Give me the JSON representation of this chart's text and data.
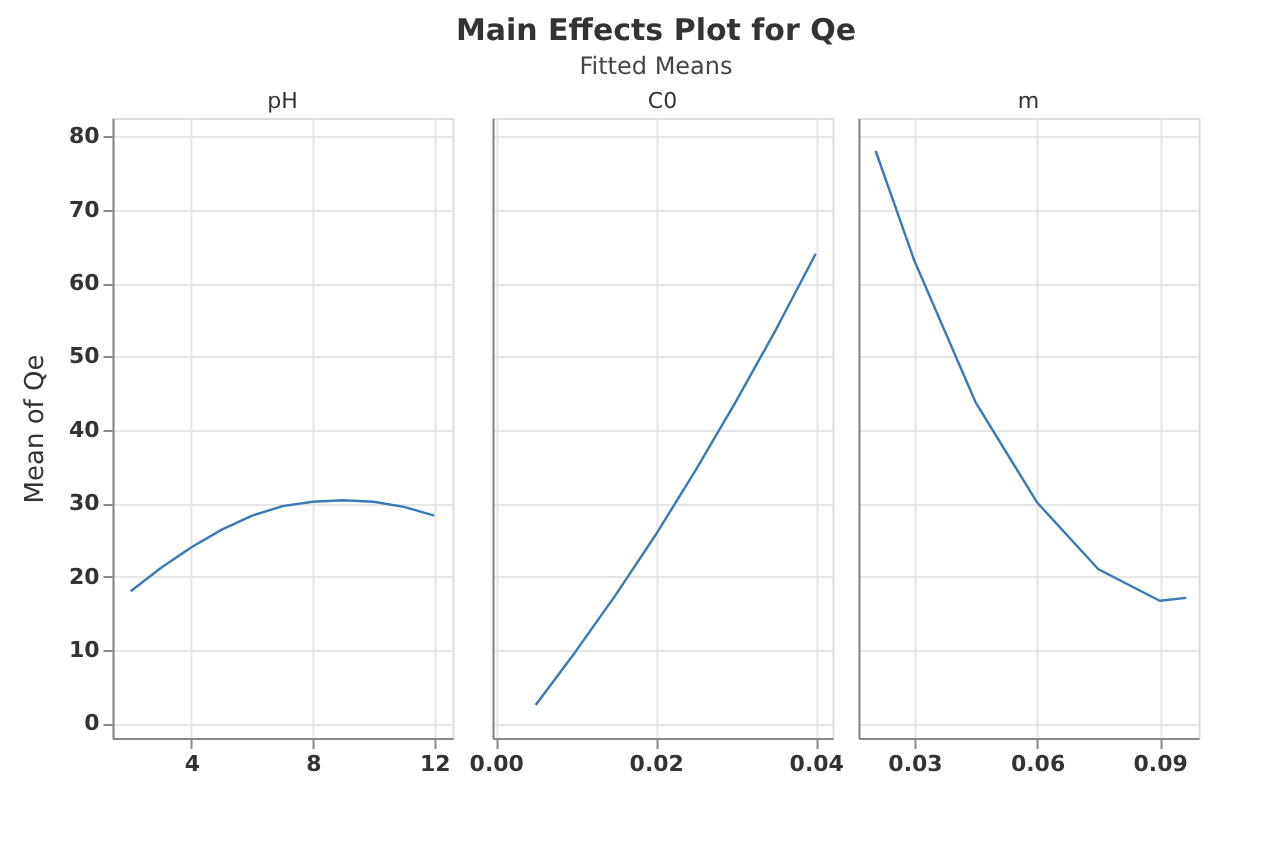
{
  "chart_data": [
    {
      "type": "other",
      "title": "Main Effects Plot for Qe",
      "subtitle": "Fitted Means"
    },
    {
      "type": "line",
      "ylabel": "Mean of Qe",
      "xlabel": "pH",
      "grid": true,
      "x": [
        2,
        3,
        4,
        5,
        6,
        7,
        8,
        9,
        10,
        11,
        12
      ],
      "values": [
        18,
        21.2,
        24,
        26.4,
        28.3,
        29.6,
        30.2,
        30.4,
        30.2,
        29.5,
        28.3
      ],
      "color": "#3a78b8",
      "xlim": [
        1.4,
        12.6
      ],
      "xticks": [
        4,
        8,
        12
      ],
      "ylim": [
        -2,
        82.5
      ],
      "yticks": [
        0,
        10,
        20,
        30,
        40,
        50,
        60,
        70,
        80
      ]
    },
    {
      "type": "line",
      "xlabel": "C0",
      "grid": true,
      "tick_labels": "x",
      "x": [
        0.005,
        0.01,
        0.015,
        0.02,
        0.025,
        0.03,
        0.035,
        0.04
      ],
      "values": [
        2.5,
        9.8,
        17.5,
        25.7,
        34.5,
        43.8,
        53.6,
        64
      ],
      "color": "#3a78b8",
      "xlim": [
        -0.0004,
        0.0421
      ],
      "xticks": [
        {
          "value": 0,
          "label": "0.00"
        },
        0.02,
        0.04
      ],
      "ylim": [
        -2,
        82.5
      ],
      "yticks": [
        0,
        10,
        20,
        30,
        40,
        50,
        60,
        70,
        80
      ]
    },
    {
      "type": "line",
      "xlabel": "m",
      "grid": true,
      "tick_labels": "x",
      "x": [
        0.0205,
        0.03,
        0.045,
        0.06,
        0.075,
        0.09,
        0.0965
      ],
      "values": [
        78,
        63,
        43.7,
        30.1,
        21,
        16.7,
        17.1
      ],
      "color": "#3a78b8",
      "xlim": [
        0.0163,
        0.0995
      ],
      "xticks": [
        0.03,
        0.06,
        0.09
      ],
      "ylim": [
        -2,
        82.5
      ],
      "yticks": [
        0,
        10,
        20,
        30,
        40,
        50,
        60,
        70,
        80
      ]
    }
  ]
}
